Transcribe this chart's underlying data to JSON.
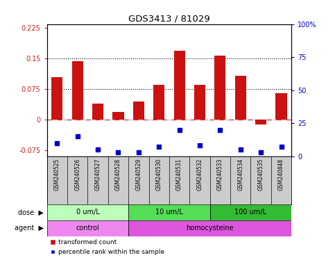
{
  "title": "GDS3413 / 81029",
  "samples": [
    "GSM240525",
    "GSM240526",
    "GSM240527",
    "GSM240528",
    "GSM240529",
    "GSM240530",
    "GSM240531",
    "GSM240532",
    "GSM240533",
    "GSM240534",
    "GSM240535",
    "GSM240848"
  ],
  "red_values": [
    0.105,
    0.143,
    0.04,
    0.018,
    0.045,
    0.085,
    0.17,
    0.085,
    0.158,
    0.108,
    -0.012,
    0.065
  ],
  "blue_pct": [
    10,
    15,
    5,
    3,
    3,
    7,
    20,
    8,
    20,
    5,
    3,
    7
  ],
  "ylim_left": [
    -0.09,
    0.235
  ],
  "ylim_right": [
    0,
    100
  ],
  "yticks_left": [
    -0.075,
    0,
    0.075,
    0.15,
    0.225
  ],
  "yticks_right": [
    0,
    25,
    50,
    75,
    100
  ],
  "hlines": [
    0.075,
    0.15
  ],
  "dose_groups": [
    {
      "label": "0 um/L",
      "start": 0,
      "end": 4,
      "color": "#bbffbb"
    },
    {
      "label": "10 um/L",
      "start": 4,
      "end": 8,
      "color": "#55dd55"
    },
    {
      "label": "100 um/L",
      "start": 8,
      "end": 12,
      "color": "#33bb33"
    }
  ],
  "agent_groups": [
    {
      "label": "control",
      "start": 0,
      "end": 4,
      "color": "#ee88ee"
    },
    {
      "label": "homocysteine",
      "start": 4,
      "end": 12,
      "color": "#dd55dd"
    }
  ],
  "bar_color": "#cc1111",
  "dot_color": "#0000cc",
  "zero_line_color": "#cc3333",
  "grid_color": "#000000",
  "left_label_color": "#cc2222",
  "right_label_color": "#0000cc",
  "bg_color": "#ffffff",
  "sample_bg_color": "#cccccc",
  "legend_red_label": "transformed count",
  "legend_blue_label": "percentile rank within the sample"
}
